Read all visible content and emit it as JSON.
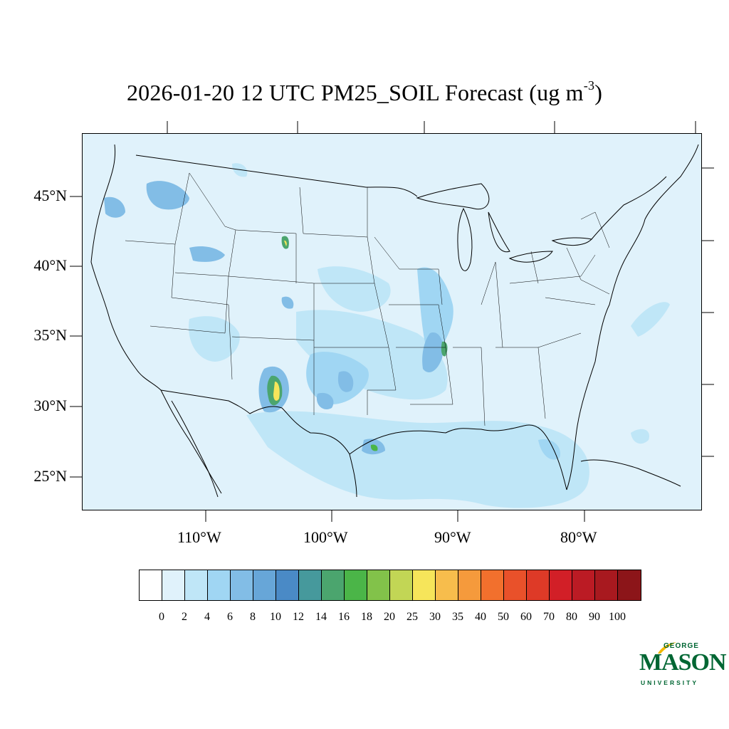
{
  "title": {
    "main": "2026-01-20 12 UTC PM25_SOIL Forecast (ug m",
    "sup": "-3",
    "close": ")"
  },
  "axes": {
    "lat_labels": [
      "45°N",
      "40°N",
      "35°N",
      "30°N",
      "25°N"
    ],
    "lon_labels": [
      "110°W",
      "100°W",
      "90°W",
      "80°W"
    ]
  },
  "colorbar": {
    "colors": [
      "#ffffff",
      "#e0f2fb",
      "#bfe6f7",
      "#a0d6f3",
      "#82bde6",
      "#67a6d8",
      "#4a8ac6",
      "#46999c",
      "#4ba56e",
      "#4bb548",
      "#82c24a",
      "#c2d655",
      "#f6e55a",
      "#f7bd4c",
      "#f59a3c",
      "#f2702d",
      "#e9512a",
      "#de3a27",
      "#d21f27",
      "#bb1b24",
      "#a8191f",
      "#8c1519"
    ],
    "labels": [
      "0",
      "2",
      "4",
      "6",
      "8",
      "10",
      "12",
      "14",
      "16",
      "18",
      "20",
      "25",
      "30",
      "35",
      "40",
      "50",
      "60",
      "70",
      "80",
      "90",
      "100"
    ]
  },
  "logo": {
    "top": "GEORGE",
    "main": "MASON",
    "bottom": "UNIVERSITY",
    "color": "#006633",
    "accent": "#f2b800"
  }
}
